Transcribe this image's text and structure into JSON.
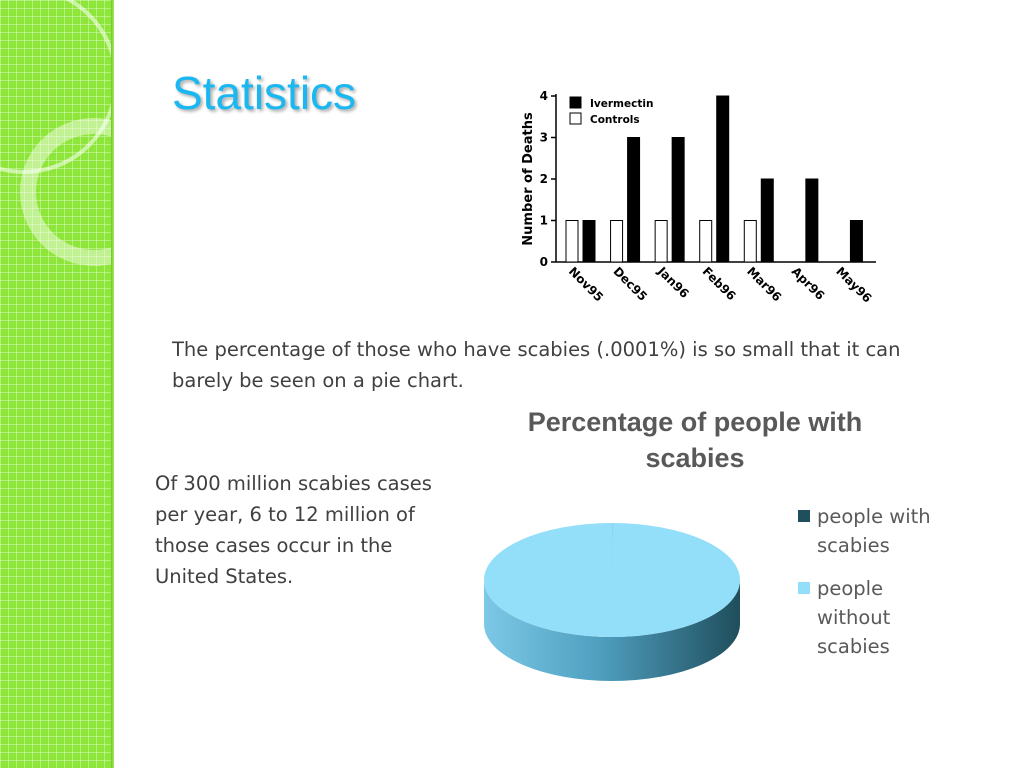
{
  "slide": {
    "title": "Statistics",
    "pie_note": "The percentage of those who have scabies (.0001%) is so small that it can barely be seen on a pie chart.",
    "us_note": "Of 300 million scabies cases per year, 6 to 12 million of those cases occur in the United States."
  },
  "colors": {
    "sidebar": "#8ee63a",
    "title": "#1ab7f0",
    "pie_with": "#1f4e5c",
    "pie_without": "#93def9"
  },
  "chart_data": [
    {
      "type": "bar",
      "title": "",
      "xlabel": "",
      "ylabel": "Number of Deaths",
      "categories": [
        "Nov95",
        "Dec95",
        "Jan96",
        "Feb96",
        "Mar96",
        "Apr96",
        "May96"
      ],
      "series": [
        {
          "name": "Controls",
          "color": "#ffffff",
          "values": [
            1,
            1,
            1,
            1,
            1,
            0,
            0
          ]
        },
        {
          "name": "Ivermectin",
          "color": "#000000",
          "values": [
            1,
            3,
            3,
            4,
            2,
            2,
            1
          ]
        }
      ],
      "ylim": [
        0,
        4
      ],
      "yticks": [
        "0",
        "1",
        "2",
        "3",
        "4"
      ],
      "grid": false,
      "legend": "top-left"
    },
    {
      "type": "pie",
      "title": "Percentage of people with scabies",
      "slices": [
        {
          "label": "people with scabies",
          "value": 0.0001,
          "color": "#1f4e5c"
        },
        {
          "label": "people without scabies",
          "value": 99.9999,
          "color": "#93def9"
        }
      ],
      "legend": "right"
    }
  ]
}
